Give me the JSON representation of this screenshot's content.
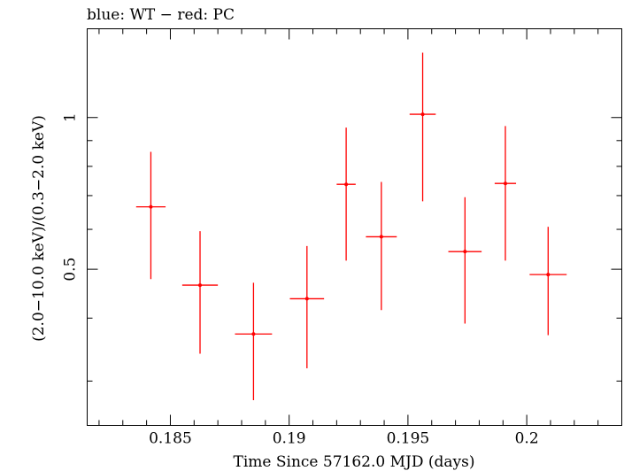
{
  "chart_data": {
    "type": "scatter",
    "title": "blue: WT − red: PC",
    "xlabel": "Time Since 57162.0 MJD (days)",
    "ylabel": "(2.0−10.0 keV)/(0.3−2.0 keV)",
    "xlim": [
      0.1815,
      0.204
    ],
    "ylim": [
      0.245,
      1.5
    ],
    "y_scale": "log",
    "x_ticks": [
      0.185,
      0.19,
      0.195,
      0.2
    ],
    "x_tick_labels": [
      "0.185",
      "0.19",
      "0.195",
      "0.2"
    ],
    "y_ticks": [
      0.5,
      1
    ],
    "y_tick_labels": [
      "0.5",
      "1"
    ],
    "grid": false,
    "series": [
      {
        "color": "#ff0000",
        "points": [
          {
            "x": 0.18418,
            "y": 0.665,
            "xerr": 0.00062,
            "ylo": 0.478,
            "yhi": 0.855
          },
          {
            "x": 0.18625,
            "y": 0.465,
            "xerr": 0.00075,
            "ylo": 0.34,
            "yhi": 0.595
          },
          {
            "x": 0.1885,
            "y": 0.372,
            "xerr": 0.00078,
            "ylo": 0.275,
            "yhi": 0.47
          },
          {
            "x": 0.19075,
            "y": 0.437,
            "xerr": 0.00072,
            "ylo": 0.318,
            "yhi": 0.556
          },
          {
            "x": 0.1924,
            "y": 0.737,
            "xerr": 0.0004,
            "ylo": 0.52,
            "yhi": 0.955
          },
          {
            "x": 0.19388,
            "y": 0.58,
            "xerr": 0.00065,
            "ylo": 0.415,
            "yhi": 0.745
          },
          {
            "x": 0.19562,
            "y": 1.015,
            "xerr": 0.00055,
            "ylo": 0.682,
            "yhi": 1.345
          },
          {
            "x": 0.1974,
            "y": 0.542,
            "xerr": 0.0007,
            "ylo": 0.39,
            "yhi": 0.695
          },
          {
            "x": 0.1991,
            "y": 0.74,
            "xerr": 0.00045,
            "ylo": 0.52,
            "yhi": 0.962
          },
          {
            "x": 0.2009,
            "y": 0.488,
            "xerr": 0.00078,
            "ylo": 0.37,
            "yhi": 0.607
          }
        ]
      }
    ]
  }
}
